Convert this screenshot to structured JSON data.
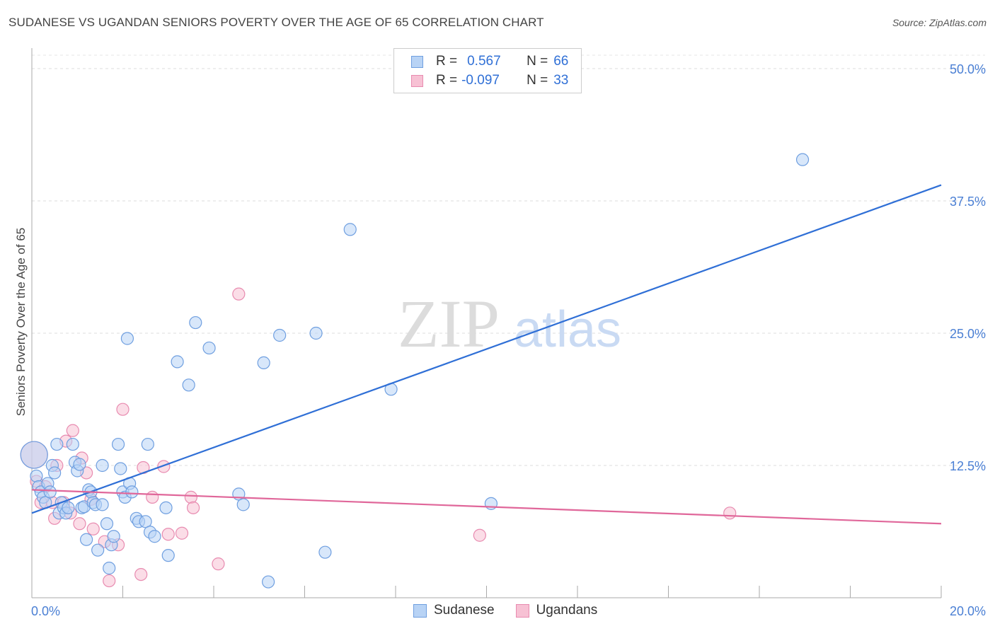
{
  "header": {
    "title": "SUDANESE VS UGANDAN SENIORS POVERTY OVER THE AGE OF 65 CORRELATION CHART",
    "source": "Source: ZipAtlas.com"
  },
  "colors": {
    "blue": "#2f6fd6",
    "blue_fill": "#b8d3f5",
    "pink": "#e0679a",
    "pink_fill": "#f7c1d4"
  },
  "legend": {
    "rows": [
      {
        "r_label": "R =",
        "r_value": "0.567",
        "n_label": "N =",
        "n_value": "66"
      },
      {
        "r_label": "R =",
        "r_value": "-0.097",
        "n_label": "N =",
        "n_value": "33"
      }
    ]
  },
  "bottom_legend": {
    "series1": "Sudanese",
    "series2": "Ugandans"
  },
  "watermark": {
    "zip": "ZIP",
    "atlas": "atlas"
  },
  "chart_data": {
    "type": "scatter",
    "title": "SUDANESE VS UGANDAN SENIORS POVERTY OVER THE AGE OF 65 CORRELATION CHART",
    "xlabel": "",
    "ylabel": "Seniors Poverty Over the Age of 65",
    "xlim": [
      0,
      20
    ],
    "ylim": [
      0,
      50
    ],
    "x_tick_labels": [
      "0.0%",
      "20.0%"
    ],
    "y_tick_values": [
      12.5,
      25.0,
      37.5,
      50.0
    ],
    "y_tick_labels": [
      "12.5%",
      "25.0%",
      "37.5%",
      "50.0%"
    ],
    "series": [
      {
        "name": "Sudanese",
        "r": 0.567,
        "n": 66,
        "trendline": {
          "x": [
            0,
            20
          ],
          "y": [
            8.0,
            39.0
          ]
        },
        "points": [
          {
            "x": 0.05,
            "y": 13.5,
            "big": true
          },
          {
            "x": 0.1,
            "y": 11.5
          },
          {
            "x": 0.15,
            "y": 10.5
          },
          {
            "x": 0.2,
            "y": 10.0
          },
          {
            "x": 0.25,
            "y": 9.5
          },
          {
            "x": 0.3,
            "y": 9.0
          },
          {
            "x": 0.35,
            "y": 10.8
          },
          {
            "x": 0.4,
            "y": 10.0
          },
          {
            "x": 0.45,
            "y": 12.5
          },
          {
            "x": 0.5,
            "y": 11.8
          },
          {
            "x": 0.55,
            "y": 14.5
          },
          {
            "x": 0.6,
            "y": 8.0
          },
          {
            "x": 0.65,
            "y": 9.0
          },
          {
            "x": 0.7,
            "y": 8.5
          },
          {
            "x": 0.75,
            "y": 8.0
          },
          {
            "x": 0.8,
            "y": 8.5
          },
          {
            "x": 0.9,
            "y": 14.5
          },
          {
            "x": 0.95,
            "y": 12.8
          },
          {
            "x": 1.0,
            "y": 12.0
          },
          {
            "x": 1.05,
            "y": 12.6
          },
          {
            "x": 1.1,
            "y": 8.5
          },
          {
            "x": 1.15,
            "y": 8.6
          },
          {
            "x": 1.2,
            "y": 5.5
          },
          {
            "x": 1.25,
            "y": 10.2
          },
          {
            "x": 1.3,
            "y": 10.0
          },
          {
            "x": 1.35,
            "y": 9.0
          },
          {
            "x": 1.4,
            "y": 8.8
          },
          {
            "x": 1.45,
            "y": 4.5
          },
          {
            "x": 1.55,
            "y": 8.8
          },
          {
            "x": 1.55,
            "y": 12.5
          },
          {
            "x": 1.65,
            "y": 7.0
          },
          {
            "x": 1.7,
            "y": 2.8
          },
          {
            "x": 1.75,
            "y": 5.0
          },
          {
            "x": 1.8,
            "y": 5.8
          },
          {
            "x": 1.9,
            "y": 14.5
          },
          {
            "x": 1.95,
            "y": 12.2
          },
          {
            "x": 2.0,
            "y": 10.0
          },
          {
            "x": 2.05,
            "y": 9.5
          },
          {
            "x": 2.1,
            "y": 24.5
          },
          {
            "x": 2.15,
            "y": 10.8
          },
          {
            "x": 2.2,
            "y": 10.0
          },
          {
            "x": 2.3,
            "y": 7.5
          },
          {
            "x": 2.35,
            "y": 7.2
          },
          {
            "x": 2.5,
            "y": 7.2
          },
          {
            "x": 2.55,
            "y": 14.5
          },
          {
            "x": 2.6,
            "y": 6.2
          },
          {
            "x": 2.7,
            "y": 5.8
          },
          {
            "x": 2.95,
            "y": 8.5
          },
          {
            "x": 3.0,
            "y": 4.0
          },
          {
            "x": 3.2,
            "y": 22.3
          },
          {
            "x": 3.45,
            "y": 20.1
          },
          {
            "x": 3.6,
            "y": 26.0
          },
          {
            "x": 3.9,
            "y": 23.6
          },
          {
            "x": 4.55,
            "y": 9.8
          },
          {
            "x": 4.65,
            "y": 8.8
          },
          {
            "x": 5.1,
            "y": 22.2
          },
          {
            "x": 5.2,
            "y": 1.5
          },
          {
            "x": 5.45,
            "y": 24.8
          },
          {
            "x": 6.25,
            "y": 25.0
          },
          {
            "x": 6.45,
            "y": 4.3
          },
          {
            "x": 7.0,
            "y": 34.8
          },
          {
            "x": 7.9,
            "y": 19.7
          },
          {
            "x": 10.1,
            "y": 8.9
          },
          {
            "x": 16.95,
            "y": 41.4
          }
        ]
      },
      {
        "name": "Ugandans",
        "r": -0.097,
        "n": 33,
        "trendline": {
          "x": [
            0,
            20
          ],
          "y": [
            10.2,
            7.0
          ]
        },
        "points": [
          {
            "x": 0.05,
            "y": 13.5,
            "big": true
          },
          {
            "x": 0.1,
            "y": 11.0
          },
          {
            "x": 0.2,
            "y": 9.0
          },
          {
            "x": 0.3,
            "y": 10.5
          },
          {
            "x": 0.45,
            "y": 9.0
          },
          {
            "x": 0.5,
            "y": 7.5
          },
          {
            "x": 0.55,
            "y": 12.5
          },
          {
            "x": 0.7,
            "y": 9.0
          },
          {
            "x": 0.75,
            "y": 14.8
          },
          {
            "x": 0.85,
            "y": 8.0
          },
          {
            "x": 0.9,
            "y": 15.8
          },
          {
            "x": 1.05,
            "y": 7.0
          },
          {
            "x": 1.1,
            "y": 13.2
          },
          {
            "x": 1.2,
            "y": 11.8
          },
          {
            "x": 1.3,
            "y": 9.3
          },
          {
            "x": 1.35,
            "y": 6.5
          },
          {
            "x": 1.6,
            "y": 5.3
          },
          {
            "x": 1.7,
            "y": 1.6
          },
          {
            "x": 1.9,
            "y": 5.0
          },
          {
            "x": 2.0,
            "y": 17.8
          },
          {
            "x": 2.4,
            "y": 2.2
          },
          {
            "x": 2.45,
            "y": 12.3
          },
          {
            "x": 2.65,
            "y": 9.5
          },
          {
            "x": 2.9,
            "y": 12.4
          },
          {
            "x": 3.0,
            "y": 6.0
          },
          {
            "x": 3.3,
            "y": 6.1
          },
          {
            "x": 3.5,
            "y": 9.5
          },
          {
            "x": 3.55,
            "y": 8.5
          },
          {
            "x": 4.1,
            "y": 3.2
          },
          {
            "x": 4.55,
            "y": 28.7
          },
          {
            "x": 9.85,
            "y": 5.9
          },
          {
            "x": 15.35,
            "y": 8.0
          }
        ]
      }
    ]
  }
}
